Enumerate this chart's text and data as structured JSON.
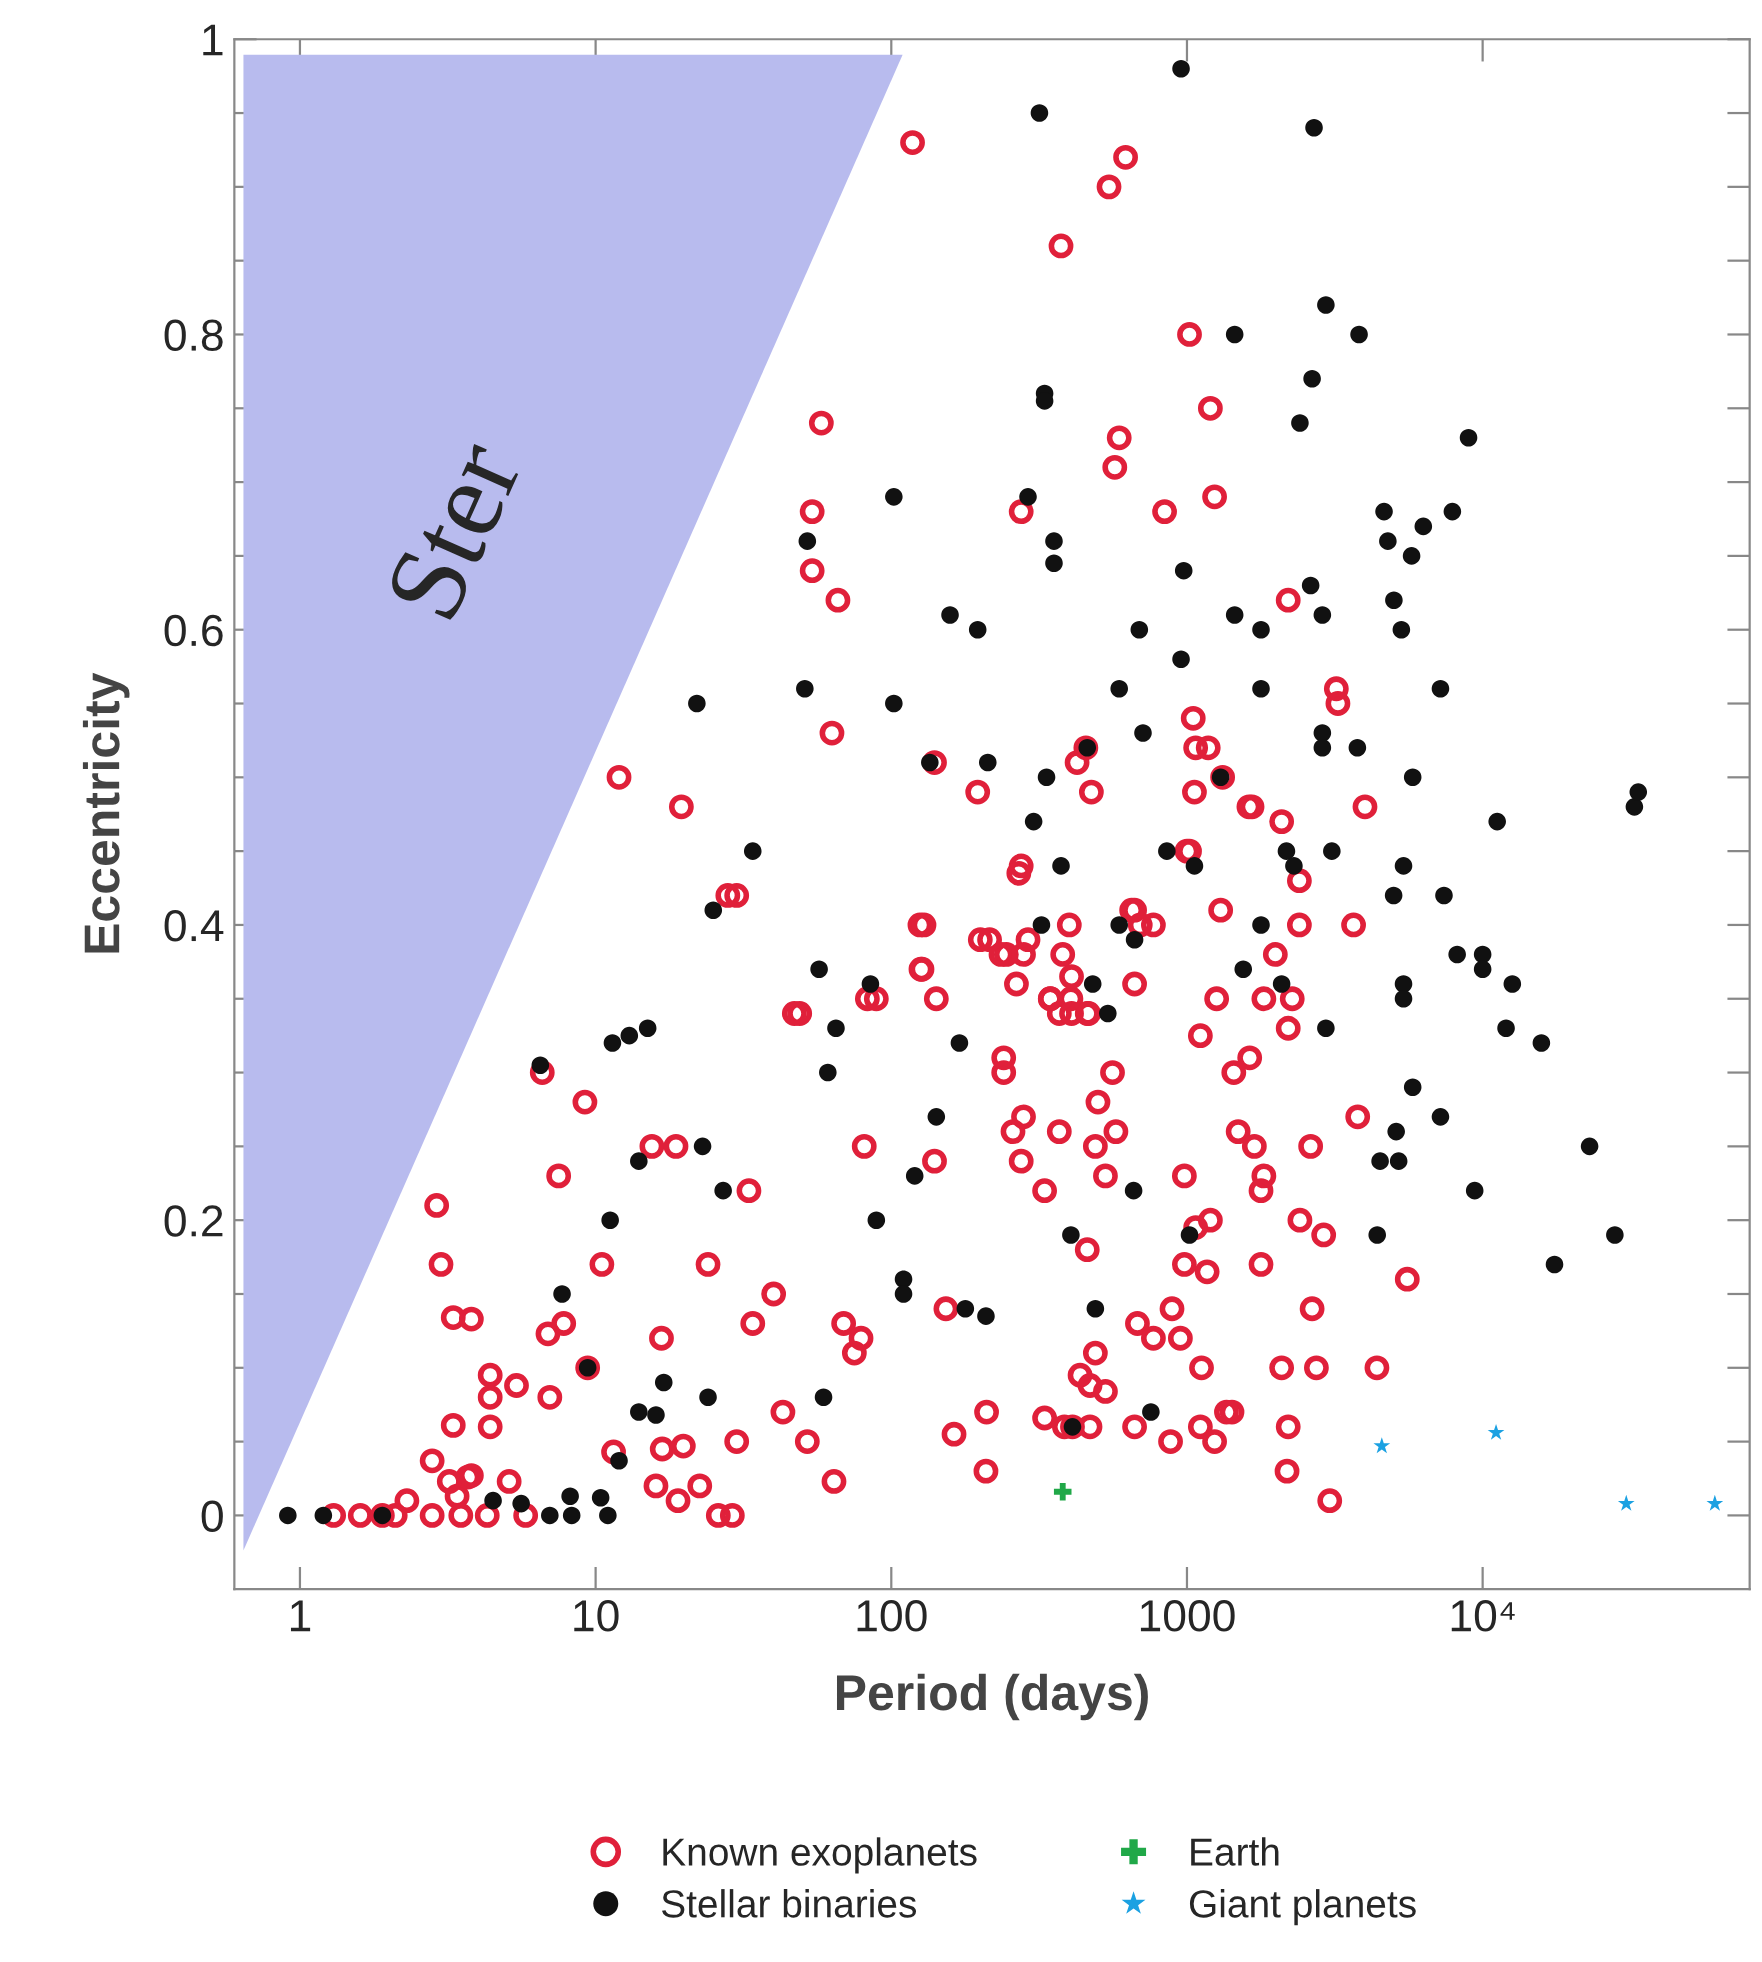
{
  "chart_data": {
    "type": "scatter",
    "xlabel": "Period (days)",
    "ylabel": "Eccentricity",
    "log": "x",
    "xlim": [
      0.6,
      80000
    ],
    "ylim": [
      -0.05,
      1.0
    ],
    "xticks": [
      1,
      10,
      100,
      1000,
      {
        "value": 10000,
        "label": "10⁴"
      }
    ],
    "yticks": [
      0,
      {
        "value": 0.05,
        "label": null
      },
      {
        "value": 0.1,
        "label": null
      },
      {
        "value": 0.15,
        "label": null
      },
      0.2,
      {
        "value": 0.25,
        "label": null
      },
      {
        "value": 0.3,
        "label": null
      },
      {
        "value": 0.35,
        "label": null
      },
      0.4,
      {
        "value": 0.45,
        "label": null
      },
      {
        "value": 0.5,
        "label": null
      },
      {
        "value": 0.55,
        "label": null
      },
      0.6,
      {
        "value": 0.65,
        "label": null
      },
      {
        "value": 0.7,
        "label": null
      },
      {
        "value": 0.75,
        "label": null
      },
      0.8,
      {
        "value": 0.85,
        "label": null
      },
      {
        "value": 0.9,
        "label": null
      },
      {
        "value": 0.95,
        "label": null
      },
      1
    ],
    "grid": false,
    "legend": "bottom",
    "annotations": [
      "Ster"
    ],
    "series": [
      {
        "name": "Known exoplanets",
        "color": "#e0203a",
        "marker": "circle",
        "x": [
          118,
          620,
          545,
          375,
          1020,
          1200,
          590,
          570,
          1240,
          58,
          54,
          54,
          66,
          840,
          275,
          2200,
          3200,
          3240,
          4000,
          63,
          12,
          19.5,
          28,
          49,
          83,
          125,
          126,
          142,
          140,
          196,
          425,
          455,
          475,
          275,
          400,
          380,
          405,
          460,
          370,
          290,
          215,
          245,
          265,
          345,
          665,
          695,
          665,
          1050,
          1070,
          1180,
          1320,
          1060,
          1620,
          2090,
          1020,
          2400,
          1300,
          3660,
          1660,
          2400,
          1990,
          1820,
          2270,
          2200,
          1630,
          1440,
          1490,
          1690,
          2620,
          3780,
          1820,
          1780,
          2410,
          2900,
          1780,
          2650,
          2090,
          2740,
          4390,
          5560,
          1420,
          2200,
          2180,
          3040,
          1000,
          270,
          30,
          129,
          200,
          235,
          280,
          770,
          650,
          127,
          89,
          47,
          345,
          407,
          407,
          465,
          1260,
          1110,
          240,
          240,
          560,
          500,
          280,
          258,
          370,
          490,
          575,
          275,
          530,
          330,
          81,
          140,
          33,
          980,
          1200,
          1070,
          460,
          980,
          1170,
          40,
          34,
          69,
          79,
          75,
          153,
          890,
          680,
          770,
          950,
          490,
          435,
          530,
          470,
          1120,
          43,
          210,
          330,
          410,
          470,
          385,
          665,
          1360,
          1110,
          1240,
          880,
          30,
          52,
          163,
          209,
          64,
          29,
          6.6,
          9.2,
          15.5,
          18.7,
          7.5,
          2.9,
          3.0,
          10.5,
          24,
          3.3,
          3.8,
          6.9,
          7.8,
          16.7,
          4.4,
          5.4,
          4.4,
          7.0,
          9.4,
          4.4,
          3.3,
          2.8,
          5.1,
          11.5,
          16.8,
          19.8,
          16,
          22.5,
          19,
          26,
          1.3,
          1.6,
          1.9,
          2.3,
          2.8,
          3.4,
          3.7,
          3.2,
          3.8,
          4.3,
          5.8,
          3.5,
          2.1
        ],
        "values": [
          0.93,
          0.92,
          0.9,
          0.86,
          0.8,
          0.75,
          0.73,
          0.71,
          0.69,
          0.74,
          0.68,
          0.64,
          0.62,
          0.68,
          0.68,
          0.62,
          0.56,
          0.55,
          0.48,
          0.53,
          0.5,
          0.48,
          0.42,
          0.34,
          0.35,
          0.4,
          0.37,
          0.35,
          0.51,
          0.49,
          0.51,
          0.52,
          0.49,
          0.44,
          0.4,
          0.38,
          0.35,
          0.34,
          0.34,
          0.39,
          0.39,
          0.38,
          0.36,
          0.35,
          0.41,
          0.4,
          0.36,
          0.54,
          0.52,
          0.52,
          0.5,
          0.49,
          0.48,
          0.47,
          0.45,
          0.43,
          0.41,
          0.4,
          0.48,
          0.4,
          0.38,
          0.35,
          0.35,
          0.33,
          0.31,
          0.3,
          0.26,
          0.25,
          0.25,
          0.27,
          0.23,
          0.22,
          0.2,
          0.19,
          0.17,
          0.14,
          0.1,
          0.1,
          0.1,
          0.16,
          0.07,
          0.06,
          0.03,
          0.01,
          0.45,
          0.435,
          0.42,
          0.4,
          0.39,
          0.38,
          0.38,
          0.4,
          0.41,
          0.37,
          0.35,
          0.34,
          0.35,
          0.365,
          0.34,
          0.34,
          0.35,
          0.325,
          0.31,
          0.3,
          0.3,
          0.28,
          0.27,
          0.26,
          0.26,
          0.25,
          0.26,
          0.24,
          0.23,
          0.22,
          0.25,
          0.24,
          0.22,
          0.23,
          0.2,
          0.195,
          0.18,
          0.17,
          0.165,
          0.15,
          0.13,
          0.13,
          0.12,
          0.11,
          0.14,
          0.14,
          0.13,
          0.12,
          0.12,
          0.11,
          0.095,
          0.084,
          0.088,
          0.1,
          0.07,
          0.07,
          0.066,
          0.06,
          0.06,
          0.06,
          0.06,
          0.07,
          0.06,
          0.05,
          0.05,
          0.05,
          0.05,
          0.055,
          0.03,
          0.023,
          0.0,
          0.3,
          0.28,
          0.25,
          0.25,
          0.23,
          0.21,
          0.17,
          0.17,
          0.17,
          0.134,
          0.133,
          0.123,
          0.13,
          0.12,
          0.095,
          0.088,
          0.08,
          0.08,
          0.1,
          0.06,
          0.061,
          0.037,
          0.023,
          0.043,
          0.045,
          0.047,
          0.02,
          0.02,
          0.01,
          0.0,
          0.0,
          0.0,
          0.0,
          0.01,
          0.0,
          0.013,
          0.026,
          0.023,
          0.027,
          0.0,
          0.0,
          0.0,
          0.0
        ]
      },
      {
        "name": "Stellar binaries",
        "color": "#111111",
        "x": [
          11200,
          32600,
          3090,
          2170,
          2300,
          5400,
          5000,
          7400,
          8200,
          10000,
          10000,
          12600,
          1550,
          2090,
          5400,
          5400,
          2950,
          12000,
          15800,
          5800,
          5100,
          7200,
          4500,
          5200,
          23000,
          9400,
          4400,
          28000,
          17500,
          2690,
          2950,
          3820,
          1450,
          2650,
          2410,
          8960,
          4640,
          6300,
          7900,
          4780,
          5750,
          2620,
          2870,
          1450,
          1780,
          5010,
          5310,
          1780,
          7200,
          2870,
          2870,
          3770,
          5800,
          33600,
          955,
          317,
          330,
          330,
          102,
          290,
          52,
          355,
          355,
          975,
          158,
          196,
          690,
          955,
          51,
          102,
          590,
          710,
          212,
          335,
          460,
          1300,
          135,
          303,
          34,
          375,
          855,
          1060,
          322,
          590,
          665,
          57,
          85,
          480,
          540,
          65,
          61,
          170,
          142,
          120,
          660,
          89,
          405,
          1020,
          110,
          110,
          178,
          209,
          490,
          59,
          755,
          410,
          25,
          11.4,
          13,
          15,
          6.5,
          23,
          14,
          27,
          11.2,
          7.7,
          9.4,
          17,
          14,
          16,
          24,
          12,
          0.91,
          1.2,
          7.0,
          8.3,
          11,
          8.2,
          10.4,
          5.6,
          4.5,
          1.9,
          22,
          1780
        ],
        "values": [
          0.47,
          0.48,
          0.45,
          0.45,
          0.44,
          0.44,
          0.42,
          0.42,
          0.38,
          0.38,
          0.37,
          0.36,
          0.37,
          0.36,
          0.36,
          0.35,
          0.33,
          0.33,
          0.32,
          0.29,
          0.26,
          0.27,
          0.24,
          0.24,
          0.25,
          0.22,
          0.19,
          0.19,
          0.17,
          0.94,
          0.82,
          0.8,
          0.8,
          0.77,
          0.74,
          0.73,
          0.68,
          0.67,
          0.68,
          0.66,
          0.65,
          0.63,
          0.61,
          0.61,
          0.6,
          0.62,
          0.6,
          0.56,
          0.56,
          0.53,
          0.52,
          0.52,
          0.5,
          0.49,
          0.98,
          0.95,
          0.76,
          0.755,
          0.69,
          0.69,
          0.66,
          0.66,
          0.645,
          0.64,
          0.61,
          0.6,
          0.6,
          0.58,
          0.56,
          0.55,
          0.56,
          0.53,
          0.51,
          0.5,
          0.52,
          0.5,
          0.51,
          0.47,
          0.45,
          0.44,
          0.45,
          0.44,
          0.4,
          0.4,
          0.39,
          0.37,
          0.36,
          0.36,
          0.34,
          0.33,
          0.3,
          0.32,
          0.27,
          0.23,
          0.22,
          0.2,
          0.19,
          0.19,
          0.16,
          0.15,
          0.14,
          0.135,
          0.14,
          0.08,
          0.07,
          0.06,
          0.41,
          0.32,
          0.325,
          0.33,
          0.305,
          0.25,
          0.24,
          0.22,
          0.2,
          0.15,
          0.1,
          0.09,
          0.07,
          0.068,
          0.08,
          0.037,
          0.0,
          0.0,
          0.0,
          0.0,
          0.0,
          0.013,
          0.012,
          0.008,
          0.01,
          0.0,
          0.55,
          0.4
        ]
      },
      {
        "name": "Earth",
        "color": "#20a848",
        "marker": "cross",
        "x": [
          380
        ],
        "values": [
          0.016
        ]
      },
      {
        "name": "Giant planets",
        "color": "#1ba1e2",
        "marker": "star",
        "x": [
          4560,
          11100,
          30600,
          61000
        ],
        "values": [
          0.047,
          0.056,
          0.008,
          0.008
        ]
      }
    ]
  }
}
